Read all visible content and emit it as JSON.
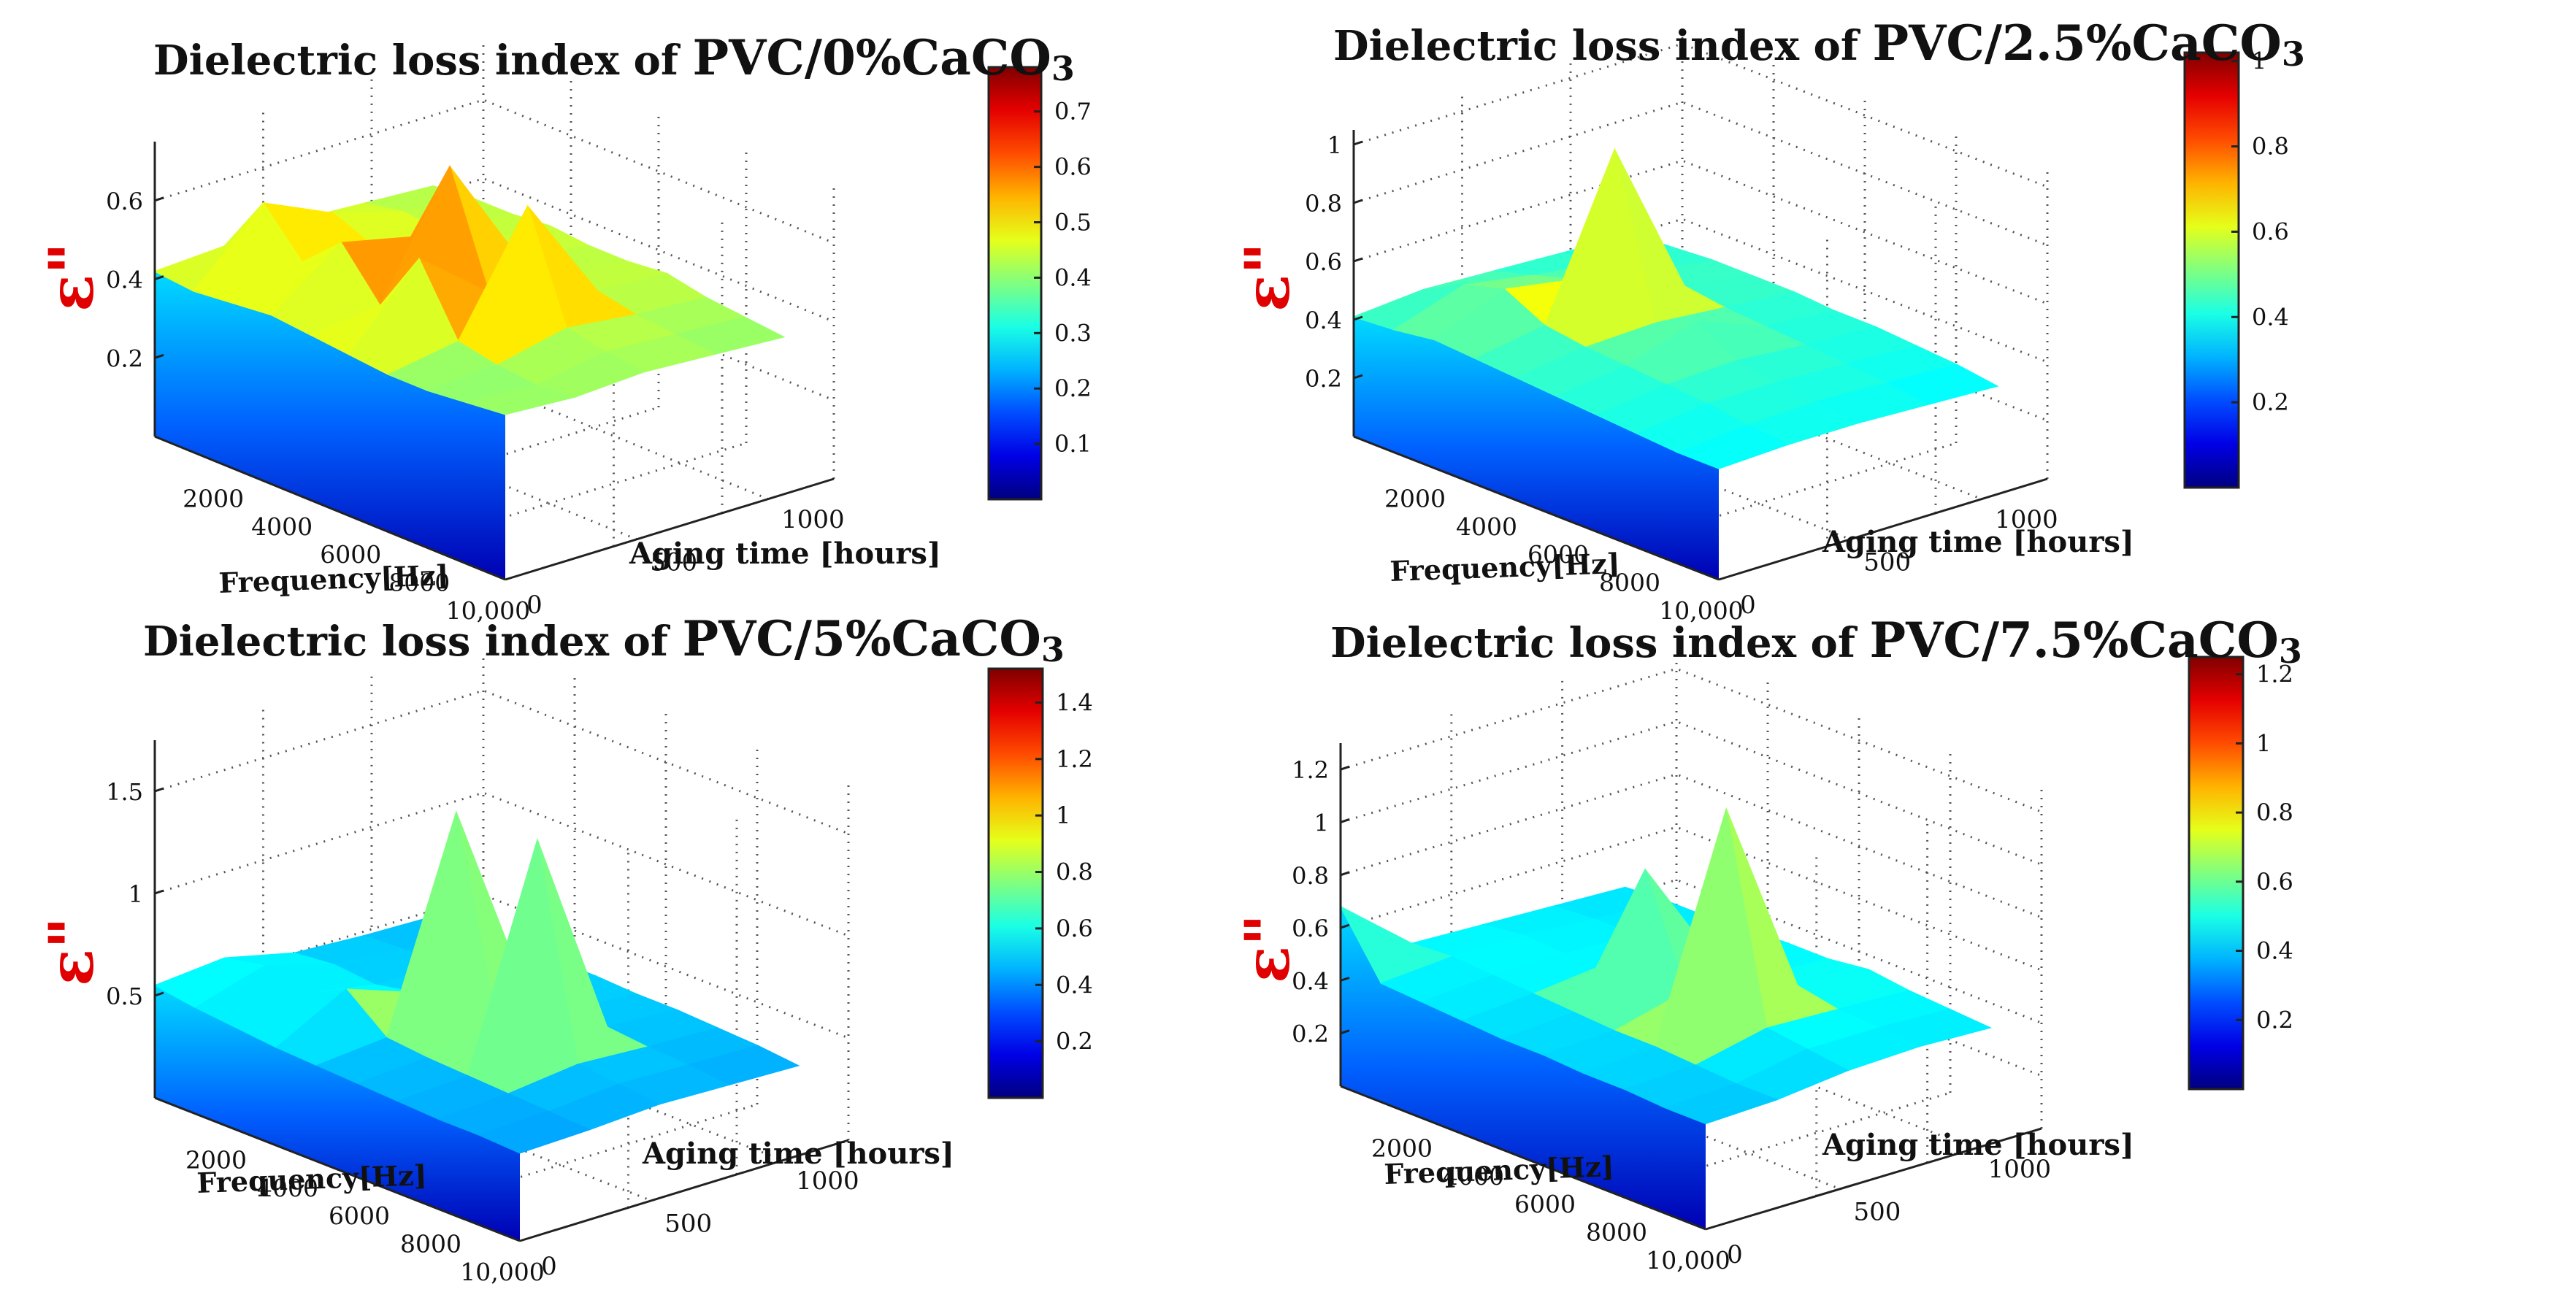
{
  "chart_data": [
    {
      "type": "surface",
      "title_prefix": "Dielectric loss index of",
      "title_material": "PVC/0%CaCO",
      "title_sub": "3",
      "zlabel": "ε\"",
      "xlabel": "Frequency[Hz]",
      "ylabel": "Aging time [hours]",
      "x_ticks": [
        "2000",
        "4000",
        "6000",
        "8000",
        "10,000"
      ],
      "y_ticks": [
        "0",
        "500",
        "1000"
      ],
      "z_ticks": [
        "0.2",
        "0.4",
        "0.6"
      ],
      "z_tick_values": [
        0.2,
        0.4,
        0.6
      ],
      "zlim": [
        0,
        0.75
      ],
      "colorbar_ticks": [
        "0.1",
        "0.2",
        "0.3",
        "0.4",
        "0.5",
        "0.6",
        "0.7"
      ],
      "colorbar_tick_values": [
        0.1,
        0.2,
        0.3,
        0.4,
        0.5,
        0.6,
        0.7
      ],
      "clim": [
        0,
        0.78
      ],
      "frequency_hz": [
        1000,
        2000,
        3000,
        4000,
        5000,
        6000,
        7000,
        8000,
        9000,
        10000
      ],
      "aging_hours": [
        0,
        250,
        500,
        750,
        1000
      ],
      "values": [
        [
          0.42,
          0.41,
          0.42,
          0.43,
          0.42,
          0.41,
          0.4,
          0.4,
          0.41,
          0.42
        ],
        [
          0.43,
          0.58,
          0.47,
          0.56,
          0.44,
          0.6,
          0.43,
          0.41,
          0.4,
          0.41
        ],
        [
          0.44,
          0.5,
          0.46,
          0.52,
          0.74,
          0.46,
          0.72,
          0.45,
          0.43,
          0.42
        ],
        [
          0.43,
          0.45,
          0.44,
          0.46,
          0.45,
          0.44,
          0.45,
          0.43,
          0.42,
          0.41
        ],
        [
          0.42,
          0.43,
          0.43,
          0.44,
          0.43,
          0.43,
          0.44,
          0.42,
          0.41,
          0.4
        ]
      ]
    },
    {
      "type": "surface",
      "title_prefix": "Dielectric loss index of",
      "title_material": "PVC/2.5%CaCO",
      "title_sub": "3",
      "zlabel": "ε\"",
      "xlabel": "Frequency[Hz]",
      "ylabel": "Aging time [hours]",
      "x_ticks": [
        "2000",
        "4000",
        "6000",
        "8000",
        "10,000"
      ],
      "y_ticks": [
        "0",
        "500",
        "1000"
      ],
      "z_ticks": [
        "0.2",
        "0.4",
        "0.6",
        "0.8",
        "1"
      ],
      "z_tick_values": [
        0.2,
        0.4,
        0.6,
        0.8,
        1.0
      ],
      "zlim": [
        0,
        1.05
      ],
      "colorbar_ticks": [
        "0.2",
        "0.4",
        "0.6",
        "0.8",
        "1"
      ],
      "colorbar_tick_values": [
        0.2,
        0.4,
        0.6,
        0.8,
        1.0
      ],
      "clim": [
        0,
        1.02
      ],
      "frequency_hz": [
        1000,
        2000,
        3000,
        4000,
        5000,
        6000,
        7000,
        8000,
        9000,
        10000
      ],
      "aging_hours": [
        0,
        250,
        500,
        750,
        1000
      ],
      "values": [
        [
          0.41,
          0.42,
          0.44,
          0.43,
          0.42,
          0.41,
          0.4,
          0.39,
          0.38,
          0.38
        ],
        [
          0.43,
          0.5,
          0.54,
          0.47,
          0.45,
          0.44,
          0.43,
          0.42,
          0.4,
          0.39
        ],
        [
          0.42,
          0.46,
          0.5,
          1.0,
          0.46,
          0.52,
          0.44,
          0.42,
          0.41,
          0.39
        ],
        [
          0.41,
          0.43,
          0.45,
          0.46,
          0.44,
          0.43,
          0.42,
          0.41,
          0.4,
          0.38
        ],
        [
          0.4,
          0.41,
          0.42,
          0.42,
          0.42,
          0.41,
          0.41,
          0.4,
          0.39,
          0.37
        ]
      ]
    },
    {
      "type": "surface",
      "title_prefix": "Dielectric loss index of",
      "title_material": "PVC/5%CaCO",
      "title_sub": "3",
      "zlabel": "ε\"",
      "xlabel": "Frequency[Hz]",
      "ylabel": "Aging time [hours]",
      "x_ticks": [
        "2000",
        "4000",
        "6000",
        "8000",
        "10,000"
      ],
      "y_ticks": [
        "0",
        "500",
        "1000"
      ],
      "z_ticks": [
        "0.5",
        "1",
        "1.5"
      ],
      "z_tick_values": [
        0.5,
        1.0,
        1.5
      ],
      "zlim": [
        0,
        1.75
      ],
      "colorbar_ticks": [
        "0.2",
        "0.4",
        "0.6",
        "0.8",
        "1",
        "1.2",
        "1.4"
      ],
      "colorbar_tick_values": [
        0.2,
        0.4,
        0.6,
        0.8,
        1.0,
        1.2,
        1.4
      ],
      "clim": [
        0,
        1.52
      ],
      "frequency_hz": [
        1000,
        2000,
        3000,
        4000,
        5000,
        6000,
        7000,
        8000,
        9000,
        10000
      ],
      "aging_hours": [
        0,
        250,
        500,
        750,
        1000
      ],
      "values": [
        [
          0.55,
          0.52,
          0.5,
          0.48,
          0.47,
          0.46,
          0.45,
          0.44,
          0.44,
          0.43
        ],
        [
          0.58,
          0.62,
          0.56,
          0.66,
          0.5,
          0.48,
          0.47,
          0.46,
          0.45,
          0.44
        ],
        [
          0.5,
          0.52,
          0.5,
          0.54,
          1.5,
          0.55,
          1.52,
          0.5,
          0.48,
          0.46
        ],
        [
          0.48,
          0.49,
          0.49,
          0.5,
          0.52,
          0.5,
          0.5,
          0.48,
          0.47,
          0.45
        ],
        [
          0.47,
          0.48,
          0.48,
          0.49,
          0.49,
          0.48,
          0.48,
          0.47,
          0.46,
          0.44
        ]
      ]
    },
    {
      "type": "surface",
      "title_prefix": "Dielectric loss index of",
      "title_material": "PVC/7.5%CaCO",
      "title_sub": "3",
      "zlabel": "ε\"",
      "xlabel": "Frequency[Hz]",
      "ylabel": "Aging time [hours]",
      "x_ticks": [
        "2000",
        "4000",
        "6000",
        "8000",
        "10,000"
      ],
      "y_ticks": [
        "0",
        "500",
        "1000"
      ],
      "z_ticks": [
        "0.2",
        "0.4",
        "0.6",
        "0.8",
        "1",
        "1.2"
      ],
      "z_tick_values": [
        0.2,
        0.4,
        0.6,
        0.8,
        1.0,
        1.2
      ],
      "zlim": [
        0,
        1.3
      ],
      "colorbar_ticks": [
        "0.2",
        "0.4",
        "0.6",
        "0.8",
        "1",
        "1.2"
      ],
      "colorbar_tick_values": [
        0.2,
        0.4,
        0.6,
        0.8,
        1.0,
        1.2
      ],
      "clim": [
        0,
        1.25
      ],
      "frequency_hz": [
        1000,
        2000,
        3000,
        4000,
        5000,
        6000,
        7000,
        8000,
        9000,
        10000
      ],
      "aging_hours": [
        0,
        250,
        500,
        750,
        1000
      ],
      "values": [
        [
          0.68,
          0.45,
          0.44,
          0.43,
          0.42,
          0.42,
          0.41,
          0.41,
          0.4,
          0.4
        ],
        [
          0.46,
          0.47,
          0.46,
          0.45,
          0.44,
          0.43,
          0.43,
          0.42,
          0.41,
          0.41
        ],
        [
          0.45,
          0.47,
          0.46,
          0.48,
          0.9,
          0.5,
          1.25,
          0.48,
          0.46,
          0.44
        ],
        [
          0.44,
          0.45,
          0.45,
          0.46,
          0.47,
          0.47,
          0.5,
          0.47,
          0.46,
          0.45
        ],
        [
          0.43,
          0.44,
          0.44,
          0.45,
          0.46,
          0.46,
          0.48,
          0.46,
          0.45,
          0.44
        ]
      ]
    }
  ]
}
